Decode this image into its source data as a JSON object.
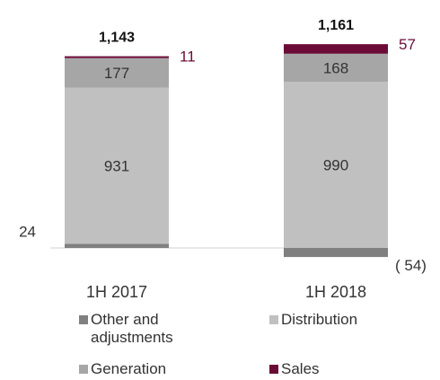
{
  "chart_data": {
    "type": "bar",
    "stacked": true,
    "categories": [
      "1H 2017",
      "1H 2018"
    ],
    "totals": [
      "1,143",
      "1,161"
    ],
    "series": [
      {
        "name": "Other and adjustments",
        "values": [
          24,
          -54
        ],
        "labels": [
          "24",
          "( 54)"
        ],
        "color": "#808080"
      },
      {
        "name": "Distribution",
        "values": [
          931,
          990
        ],
        "labels": [
          "931",
          "990"
        ],
        "color": "#c0c0c0"
      },
      {
        "name": "Generation",
        "values": [
          177,
          168
        ],
        "labels": [
          "177",
          "168"
        ],
        "color": "#a6a6a6"
      },
      {
        "name": "Sales",
        "values": [
          11,
          57
        ],
        "labels": [
          "11",
          "57"
        ],
        "color": "#6b0c37"
      }
    ],
    "legend_position": "bottom",
    "grid": false
  }
}
